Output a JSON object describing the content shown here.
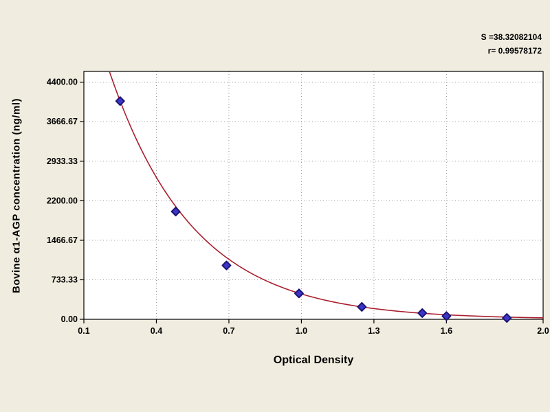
{
  "stats": {
    "s": "S =38.32082104",
    "r": "r= 0.99578172"
  },
  "chart_data": {
    "type": "scatter",
    "title": "",
    "xlabel": "Optical Density",
    "ylabel": "Bovine α1-AGP concentration (ng/ml)",
    "xlim": [
      0.1,
      2.0
    ],
    "ylim": [
      0,
      4600
    ],
    "grid": true,
    "x_ticks": [
      {
        "v": 0.1,
        "label": "0.1"
      },
      {
        "v": 0.4,
        "label": "0.4"
      },
      {
        "v": 0.7,
        "label": "0.7"
      },
      {
        "v": 1.0,
        "label": "1.0"
      },
      {
        "v": 1.3,
        "label": "1.3"
      },
      {
        "v": 1.6,
        "label": "1.6"
      },
      {
        "v": 2.0,
        "label": "2.0"
      }
    ],
    "y_ticks": [
      {
        "v": 0,
        "label": "0.00"
      },
      {
        "v": 733.33,
        "label": "733.33"
      },
      {
        "v": 1466.67,
        "label": "1466.67"
      },
      {
        "v": 2200.0,
        "label": "2200.00"
      },
      {
        "v": 2933.33,
        "label": "2933.33"
      },
      {
        "v": 3666.67,
        "label": "3666.67"
      },
      {
        "v": 4400.0,
        "label": "4400.00"
      }
    ],
    "points": [
      {
        "x": 0.25,
        "y": 4050
      },
      {
        "x": 0.48,
        "y": 2000
      },
      {
        "x": 0.69,
        "y": 1000
      },
      {
        "x": 0.99,
        "y": 480
      },
      {
        "x": 1.25,
        "y": 230
      },
      {
        "x": 1.5,
        "y": 115
      },
      {
        "x": 1.6,
        "y": 60
      },
      {
        "x": 1.85,
        "y": 25
      }
    ],
    "curve_fit": {
      "type": "exponential",
      "a": 8300,
      "b": 2.87,
      "x_start": 0.17,
      "x_end": 2.0
    },
    "colors": {
      "background": "#f0ede0",
      "plot_background": "#ffffff",
      "grid": "#999999",
      "axis": "#000000",
      "curve": "#aa1f2e",
      "marker_fill": "#3c35c8",
      "marker_edge": "#1a1570",
      "text": "#000000"
    },
    "legend": "none"
  }
}
